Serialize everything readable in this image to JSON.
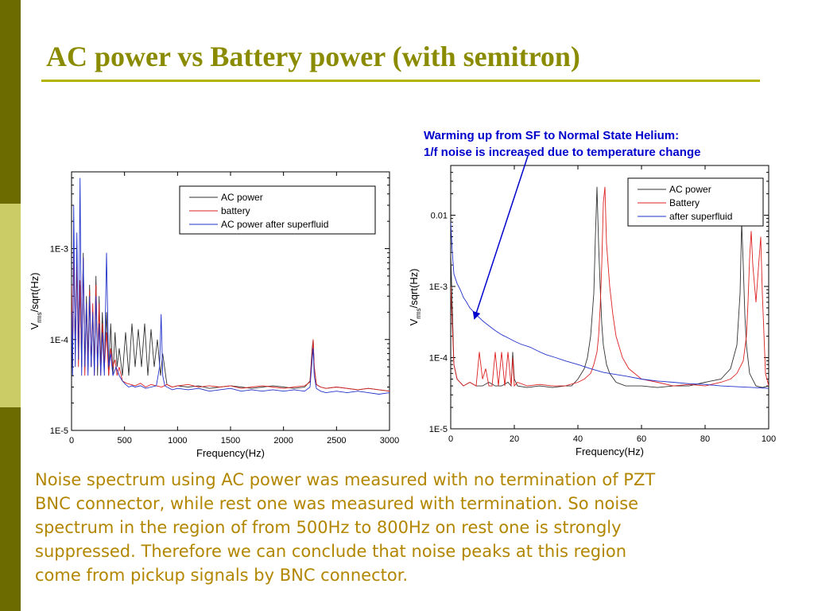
{
  "slide": {
    "title": "AC power vs Battery power (with semitron)",
    "annotation_lines": [
      "Warming up from SF to Normal State Helium:",
      "1/f noise is increased due to temperature change"
    ],
    "body_lines": [
      "Noise spectrum using AC power was measured with no termination of PZT",
      "BNC connector, while rest one was measured with termination. So noise",
      "spectrum in the region of from 500Hz to 800Hz on rest one is strongly",
      "suppressed. Therefore we can conclude that noise peaks at this region",
      "come from pickup signals by BNC connector."
    ],
    "colors": {
      "sidebar_dark": "#6b6b00",
      "sidebar_light": "#cccc66",
      "title": "#8b8b00",
      "body_text": "#b38600",
      "annotation": "#0000cc"
    }
  },
  "chart_data": [
    {
      "type": "line",
      "xlabel": "Frequency(Hz)",
      "ylabel_main": "V",
      "ylabel_sub": "rms",
      "ylabel_rest": "/sqrt(Hz)",
      "xlim": [
        0,
        3000
      ],
      "ylim": [
        1e-05,
        0.007
      ],
      "yscale": "log",
      "xticks": [
        0,
        500,
        1000,
        1500,
        2000,
        2500,
        3000
      ],
      "xtick_labels": [
        "0",
        "500",
        "1000",
        "1500",
        "2000",
        "2500",
        "3000"
      ],
      "yticks": [
        1e-05,
        0.0001,
        0.001
      ],
      "ytick_labels": [
        "1E-5",
        "1E-4",
        "1E-3"
      ],
      "legend_position": "top-right",
      "series": [
        {
          "name": "AC power",
          "color": "#333333",
          "x": [
            0,
            10,
            20,
            35,
            50,
            65,
            80,
            95,
            110,
            125,
            140,
            155,
            170,
            185,
            200,
            215,
            230,
            245,
            260,
            275,
            290,
            310,
            330,
            350,
            370,
            390,
            410,
            430,
            450,
            480,
            510,
            540,
            570,
            600,
            630,
            660,
            690,
            720,
            750,
            780,
            810,
            840,
            860,
            900,
            950,
            1000,
            1100,
            1200,
            1300,
            1400,
            1500,
            1600,
            1700,
            1800,
            1900,
            2000,
            2100,
            2200,
            2250,
            2270,
            2280,
            2290,
            2310,
            2350,
            2400,
            2500,
            2600,
            2700,
            2800,
            2900,
            3000
          ],
          "y": [
            0.0005,
            5e-05,
            0.0012,
            8e-05,
            0.0008,
            6e-05,
            0.0004,
            5e-05,
            0.0009,
            5e-05,
            0.0003,
            6e-05,
            0.0004,
            5e-05,
            0.0002,
            5e-05,
            0.0005,
            4e-05,
            0.0003,
            5e-05,
            0.0002,
            5e-05,
            0.0002,
            4e-05,
            0.00015,
            4e-05,
            0.00012,
            5e-05,
            8e-05,
            4e-05,
            0.00012,
            4e-05,
            0.00015,
            5e-05,
            0.00013,
            5e-05,
            0.00015,
            4e-05,
            0.00013,
            5e-05,
            0.0001,
            4e-05,
            7e-05,
            3.2e-05,
            3e-05,
            3.1e-05,
            3e-05,
            3.1e-05,
            2.9e-05,
            3e-05,
            3.1e-05,
            3e-05,
            2.9e-05,
            3e-05,
            3.1e-05,
            3e-05,
            2.9e-05,
            3e-05,
            3.5e-05,
            8e-05,
            0.0001,
            5e-05,
            3.2e-05,
            3e-05,
            2.9e-05,
            3e-05,
            2.9e-05,
            2.8e-05,
            2.9e-05,
            2.8e-05,
            2.7e-05
          ]
        },
        {
          "name": "battery",
          "color": "#dd2222",
          "x": [
            0,
            10,
            20,
            35,
            50,
            65,
            80,
            95,
            110,
            125,
            140,
            155,
            170,
            185,
            200,
            215,
            230,
            245,
            260,
            275,
            290,
            310,
            330,
            350,
            370,
            390,
            410,
            430,
            450,
            480,
            520,
            560,
            600,
            650,
            700,
            750,
            800,
            850,
            900,
            950,
            1000,
            1100,
            1200,
            1300,
            1400,
            1500,
            1600,
            1700,
            1800,
            1900,
            2000,
            2100,
            2200,
            2250,
            2270,
            2280,
            2290,
            2310,
            2350,
            2400,
            2500,
            2600,
            2700,
            2800,
            2900,
            3000
          ],
          "y": [
            0.0004,
            6e-05,
            0.001,
            7e-05,
            0.0007,
            5e-05,
            0.00045,
            6e-05,
            0.0008,
            4e-05,
            0.00025,
            5e-05,
            0.00035,
            5e-05,
            0.00025,
            4e-05,
            0.0004,
            5e-05,
            0.00025,
            4e-05,
            0.00015,
            5e-05,
            0.00012,
            4e-05,
            8e-05,
            5e-05,
            6e-05,
            4e-05,
            5e-05,
            3.5e-05,
            3.3e-05,
            3.2e-05,
            3.1e-05,
            3.3e-05,
            3e-05,
            3.2e-05,
            3.1e-05,
            3e-05,
            3.2e-05,
            3e-05,
            3.1e-05,
            3.2e-05,
            3e-05,
            3.1e-05,
            3e-05,
            3.1e-05,
            2.9e-05,
            3e-05,
            3.1e-05,
            3e-05,
            2.9e-05,
            3e-05,
            3.1e-05,
            3.4e-05,
            7e-05,
            0.0001,
            5e-05,
            3.2e-05,
            3e-05,
            2.9e-05,
            3e-05,
            2.9e-05,
            2.8e-05,
            2.9e-05,
            2.8e-05,
            2.7e-05
          ]
        },
        {
          "name": "AC power after superfluid",
          "color": "#2233cc",
          "x": [
            0,
            10,
            20,
            35,
            50,
            65,
            80,
            95,
            110,
            125,
            140,
            155,
            170,
            185,
            200,
            215,
            230,
            245,
            260,
            275,
            290,
            310,
            330,
            350,
            370,
            390,
            420,
            450,
            480,
            510,
            540,
            570,
            600,
            650,
            700,
            750,
            800,
            830,
            845,
            860,
            880,
            900,
            950,
            1000,
            1100,
            1200,
            1300,
            1400,
            1500,
            1600,
            1700,
            1800,
            1900,
            2000,
            2100,
            2200,
            2250,
            2270,
            2280,
            2290,
            2310,
            2350,
            2400,
            2500,
            2600,
            2700,
            2800,
            2900,
            3000
          ],
          "y": [
            0.0002,
            4e-05,
            0.003,
            5e-05,
            0.0015,
            6e-05,
            0.006,
            4e-05,
            0.0008,
            5e-05,
            0.00025,
            4e-05,
            0.0003,
            5e-05,
            0.0002,
            4e-05,
            0.0003,
            5e-05,
            0.00015,
            4e-05,
            0.00012,
            4e-05,
            0.0009,
            5e-05,
            7e-05,
            4e-05,
            5e-05,
            4e-05,
            3.5e-05,
            3.2e-05,
            3e-05,
            3.1e-05,
            3e-05,
            3.1e-05,
            2.9e-05,
            3e-05,
            3.1e-05,
            5e-05,
            0.00019,
            4e-05,
            3.1e-05,
            3e-05,
            2.8e-05,
            2.9e-05,
            2.8e-05,
            2.9e-05,
            2.7e-05,
            2.8e-05,
            2.9e-05,
            2.7e-05,
            2.8e-05,
            2.7e-05,
            2.8e-05,
            2.7e-05,
            2.8e-05,
            2.7e-05,
            3e-05,
            6e-05,
            8e-05,
            4e-05,
            2.9e-05,
            2.7e-05,
            2.6e-05,
            2.7e-05,
            2.6e-05,
            2.7e-05,
            2.6e-05,
            2.5e-05,
            2.6e-05
          ]
        }
      ]
    },
    {
      "type": "line",
      "xlabel": "Frequency(Hz)",
      "ylabel_main": "V",
      "ylabel_sub": "rms",
      "ylabel_rest": "/sqrt(Hz)",
      "xlim": [
        0,
        100
      ],
      "ylim": [
        1e-05,
        0.05
      ],
      "yscale": "log",
      "xticks": [
        0,
        20,
        40,
        60,
        80,
        100
      ],
      "xtick_labels": [
        "0",
        "20",
        "40",
        "60",
        "80",
        "100"
      ],
      "yticks": [
        1e-05,
        0.0001,
        0.001,
        0.01
      ],
      "ytick_labels": [
        "1E-5",
        "1E-4",
        "1E-3",
        "0.01"
      ],
      "legend_position": "top-right",
      "series": [
        {
          "name": "AC power",
          "color": "#333333",
          "x": [
            0,
            1,
            2,
            4,
            6,
            8,
            10,
            12,
            14,
            16,
            18,
            19,
            19.5,
            20,
            21,
            24,
            28,
            32,
            36,
            38,
            40,
            42,
            43,
            44,
            45,
            45.5,
            46,
            46.5,
            47,
            47.5,
            48,
            49,
            50,
            52,
            55,
            60,
            65,
            70,
            75,
            80,
            85,
            88,
            90,
            91,
            91.5,
            92,
            92.5,
            93,
            94,
            96,
            98,
            100
          ],
          "y": [
            0.003,
            8e-05,
            5e-05,
            4e-05,
            4.5e-05,
            4e-05,
            4e-05,
            4.5e-05,
            4e-05,
            4e-05,
            4.5e-05,
            4e-05,
            0.00012,
            5e-05,
            4e-05,
            3.8e-05,
            4e-05,
            3.8e-05,
            4e-05,
            4e-05,
            5e-05,
            7e-05,
            0.0001,
            0.0002,
            0.0008,
            0.005,
            0.025,
            0.004,
            0.001,
            0.0003,
            0.00015,
            8e-05,
            6e-05,
            4.5e-05,
            4e-05,
            4e-05,
            3.8e-05,
            4e-05,
            4e-05,
            4.5e-05,
            5e-05,
            7e-05,
            0.00015,
            0.0008,
            0.008,
            0.002,
            0.0004,
            0.00015,
            6e-05,
            4e-05,
            3.8e-05,
            4e-05
          ]
        },
        {
          "name": "Battery",
          "color": "#dd2222",
          "x": [
            0,
            1,
            2,
            4,
            6,
            8,
            9,
            10,
            11,
            12,
            13,
            14,
            15,
            16,
            17,
            18,
            19,
            19.5,
            20,
            21,
            24,
            28,
            32,
            36,
            40,
            42,
            44,
            45,
            46,
            46.5,
            47,
            47.5,
            48,
            48.5,
            49,
            50,
            51,
            52,
            54,
            56,
            60,
            65,
            70,
            75,
            80,
            85,
            88,
            90,
            92,
            93,
            93.5,
            94,
            94.5,
            95,
            96,
            97,
            97.5,
            98,
            99,
            100
          ],
          "y": [
            0.001,
            8e-05,
            5e-05,
            4e-05,
            4.5e-05,
            4e-05,
            0.00012,
            5e-05,
            7e-05,
            4e-05,
            4e-05,
            0.00012,
            4e-05,
            0.00012,
            4e-05,
            0.00012,
            4e-05,
            0.0001,
            4e-05,
            4.5e-05,
            4e-05,
            4.2e-05,
            4e-05,
            4e-05,
            4.5e-05,
            5e-05,
            6e-05,
            8e-05,
            0.00012,
            0.0002,
            0.0005,
            0.002,
            0.015,
            0.025,
            0.004,
            0.001,
            0.0004,
            0.0002,
            0.0001,
            7e-05,
            5e-05,
            4.5e-05,
            4e-05,
            4.2e-05,
            4e-05,
            4.5e-05,
            5e-05,
            6e-05,
            9e-05,
            0.0002,
            0.0006,
            0.0025,
            0.006,
            0.002,
            0.0006,
            0.0025,
            0.005,
            0.0008,
            6e-05,
            4e-05
          ]
        },
        {
          "name": "after superfluid",
          "color": "#2233cc",
          "x": [
            0,
            0.5,
            1,
            2,
            3,
            4,
            5,
            6,
            7,
            8,
            10,
            12,
            14,
            16,
            18,
            20,
            22,
            25,
            28,
            30,
            33,
            36,
            40,
            44,
            48,
            50,
            55,
            60,
            65,
            70,
            75,
            80,
            85,
            90,
            95,
            100
          ],
          "y": [
            0.008,
            0.003,
            0.0015,
            0.0011,
            0.0009,
            0.0007,
            0.0006,
            0.0005,
            0.00045,
            0.0004,
            0.00033,
            0.00028,
            0.00024,
            0.00021,
            0.00019,
            0.00017,
            0.000155,
            0.00014,
            0.00012,
            0.00011,
            0.0001,
            9e-05,
            8e-05,
            7e-05,
            6.2e-05,
            6e-05,
            5.5e-05,
            5e-05,
            4.7e-05,
            4.5e-05,
            4.3e-05,
            4.2e-05,
            4e-05,
            3.9e-05,
            3.8e-05,
            3.7e-05
          ]
        }
      ]
    }
  ]
}
